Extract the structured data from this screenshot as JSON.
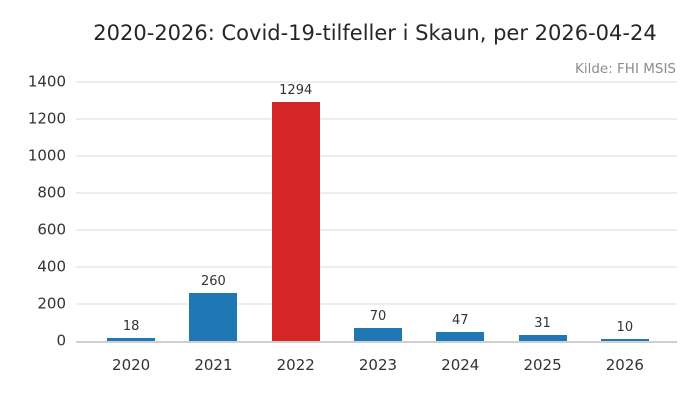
{
  "chart_data": {
    "type": "bar",
    "title": "2020-2026: Covid-19-tilfeller i Skaun, per 2026-04-24",
    "source": "Kilde: FHI MSIS",
    "categories": [
      "2020",
      "2021",
      "2022",
      "2023",
      "2024",
      "2025",
      "2026"
    ],
    "values": [
      18,
      260,
      1294,
      70,
      47,
      31,
      10
    ],
    "bar_colors": [
      "#1f77b4",
      "#1f77b4",
      "#d62728",
      "#1f77b4",
      "#1f77b4",
      "#1f77b4",
      "#1f77b4"
    ],
    "default_bar_color": "#1f77b4",
    "highlight_bar_color": "#d62728",
    "value_labels_shown": true,
    "xlabel": "",
    "ylabel": "",
    "ylim": [
      0,
      1400
    ],
    "yticks": [
      0,
      200,
      400,
      600,
      800,
      1000,
      1200,
      1400
    ],
    "grid": true,
    "legend_position": "none"
  }
}
